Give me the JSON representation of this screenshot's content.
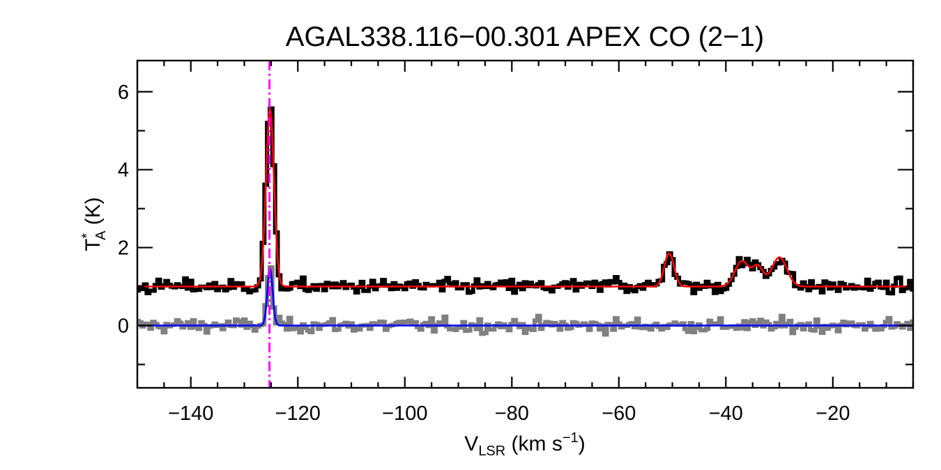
{
  "chart_data": {
    "type": "line",
    "title": "AGAL338.116−00.301  APEX CO (2−1)",
    "xlabel": {
      "main": "V",
      "sub": "LSR",
      "units": " (km s",
      "sup": "−1",
      "close": ")"
    },
    "ylabel": {
      "main": "T",
      "sup": "*",
      "sub": "A",
      "units": " (K)"
    },
    "xlim": [
      -150,
      -5
    ],
    "ylim": [
      -1.6,
      6.8
    ],
    "xticks": [
      -140,
      -120,
      -100,
      -80,
      -60,
      -40,
      -20
    ],
    "xtick_labels": [
      "−140",
      "−120",
      "−100",
      "−80",
      "−60",
      "−40",
      "−20"
    ],
    "yticks": [
      0,
      2,
      4,
      6
    ],
    "ytick_labels": [
      "0",
      "2",
      "4",
      "6"
    ],
    "grid": false,
    "velocity_marker": {
      "x": -125.3,
      "color": "#ff00ff",
      "style": "dash-dot"
    },
    "colors": {
      "spectrum": "#000000",
      "fit": "#ff0000",
      "residual": "#808080",
      "component": "#0000ff"
    },
    "series": [
      {
        "role": "observed spectrum (offset +1 K)",
        "baseline": 1.0,
        "peaks": [
          {
            "center": -125.2,
            "amplitude": 4.6,
            "sigma": 0.75
          },
          {
            "center": -60.5,
            "amplitude": 0.25,
            "sigma": 0.7
          },
          {
            "center": -50.6,
            "amplitude": 0.85,
            "sigma": 0.9
          },
          {
            "center": -37.0,
            "amplitude": 0.65,
            "sigma": 1.3
          },
          {
            "center": -34.0,
            "amplitude": 0.5,
            "sigma": 1.0
          },
          {
            "center": -30.0,
            "amplitude": 0.75,
            "sigma": 1.4
          }
        ]
      },
      {
        "role": "multi-gaussian fit (offset +1 K)",
        "baseline": 1.0,
        "peaks": [
          {
            "center": -125.2,
            "amplitude": 4.55,
            "sigma": 0.75
          },
          {
            "center": -50.6,
            "amplitude": 0.85,
            "sigma": 0.9
          },
          {
            "center": -37.0,
            "amplitude": 0.65,
            "sigma": 1.3
          },
          {
            "center": -34.0,
            "amplitude": 0.5,
            "sigma": 1.0
          },
          {
            "center": -30.0,
            "amplitude": 0.75,
            "sigma": 1.4
          }
        ]
      },
      {
        "role": "residual spectrum",
        "baseline": 0.0,
        "peaks": [
          {
            "center": -125.2,
            "amplitude": 1.5,
            "sigma": 0.5
          }
        ]
      },
      {
        "role": "source component gaussian",
        "baseline": 0.0,
        "peaks": [
          {
            "center": -125.2,
            "amplitude": 1.45,
            "sigma": 0.5
          }
        ]
      }
    ],
    "noise_rms_K": 0.09,
    "channel_width_kms": 0.5
  }
}
